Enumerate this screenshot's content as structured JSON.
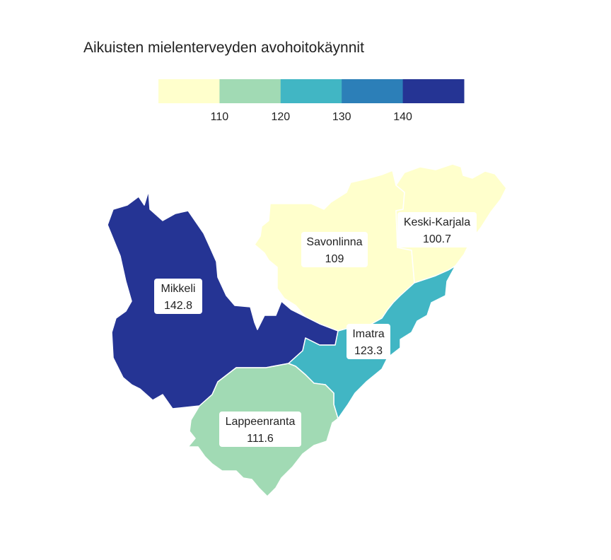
{
  "title": "Aikuisten mielenterveyden avohoitokäynnit",
  "legend": {
    "colors": [
      "#ffffcc",
      "#a1dab4",
      "#41b6c4",
      "#2c7fb8",
      "#253494"
    ],
    "ticks": [
      "110",
      "120",
      "130",
      "140"
    ]
  },
  "regions": [
    {
      "id": "mikkeli",
      "name": "Mikkeli",
      "value": "142.8",
      "color": "#253494"
    },
    {
      "id": "savonlinna",
      "name": "Savonlinna",
      "value": "109",
      "color": "#ffffcc"
    },
    {
      "id": "keski-karjala",
      "name": "Keski-Karjala",
      "value": "100.7",
      "color": "#ffffcc"
    },
    {
      "id": "imatra",
      "name": "Imatra",
      "value": "123.3",
      "color": "#41b6c4"
    },
    {
      "id": "lappeenranta",
      "name": "Lappeenranta",
      "value": "111.6",
      "color": "#a1dab4"
    }
  ]
}
